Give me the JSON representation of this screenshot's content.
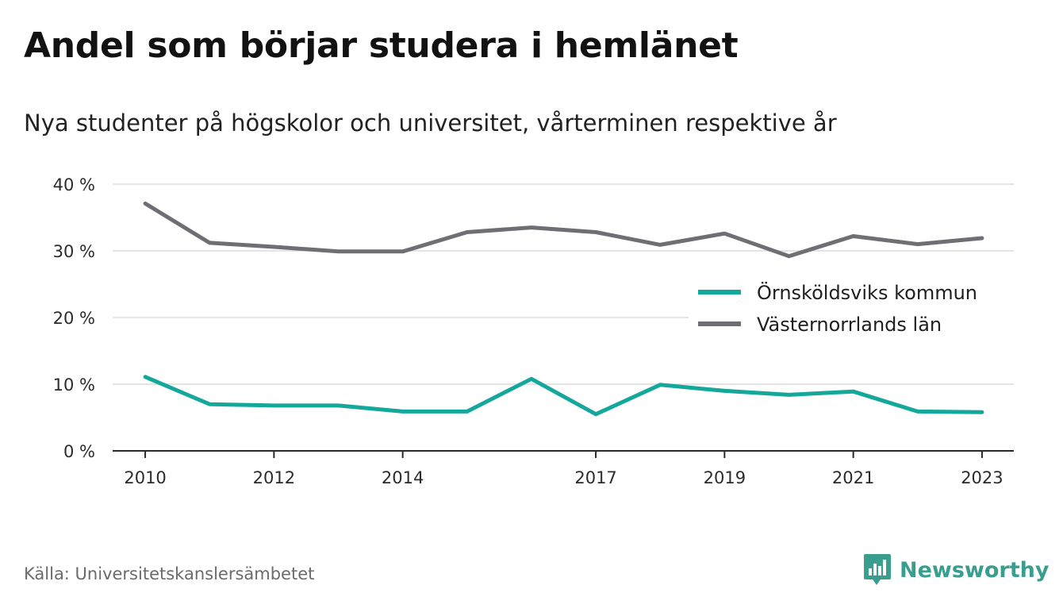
{
  "header": {
    "title": "Andel som börjar studera i hemlänet",
    "subtitle": "Nya studenter på högskolor och universitet, vårterminen respektive år"
  },
  "footer": {
    "source": "Källa: Universitetskanslersämbetet",
    "brand": "Newsworthy",
    "brand_icon": "bar-chart-speech-bubble-icon",
    "brand_color": "#3a9e8f"
  },
  "chart_data": {
    "type": "line",
    "title": "Andel som börjar studera i hemlänet",
    "xlabel": "",
    "ylabel": "",
    "x": [
      2010,
      2011,
      2012,
      2013,
      2014,
      2015,
      2016,
      2017,
      2018,
      2019,
      2020,
      2021,
      2022,
      2023
    ],
    "x_tick_values": [
      2010,
      2012,
      2014,
      2017,
      2019,
      2021,
      2023
    ],
    "x_tick_labels": [
      "2010",
      "2012",
      "2014",
      "2017",
      "2019",
      "2021",
      "2023"
    ],
    "ylim": [
      0,
      40
    ],
    "y_ticks": [
      0,
      10,
      20,
      30,
      40
    ],
    "y_tick_labels": [
      "0 %",
      "10 %",
      "20 %",
      "30 %",
      "40 %"
    ],
    "grid": true,
    "legend_position": "right",
    "series": [
      {
        "name": "Örnsköldsviks kommun",
        "color": "#14a89c",
        "values": [
          11.1,
          7.0,
          6.8,
          6.8,
          5.9,
          5.9,
          10.8,
          5.5,
          9.9,
          9.0,
          8.4,
          8.9,
          5.9,
          5.8
        ]
      },
      {
        "name": "Västernorrlands län",
        "color": "#6e6e75",
        "values": [
          37.1,
          31.2,
          30.6,
          29.9,
          29.9,
          32.8,
          33.5,
          32.8,
          30.9,
          32.6,
          29.2,
          32.2,
          31.0,
          31.9
        ]
      }
    ]
  }
}
